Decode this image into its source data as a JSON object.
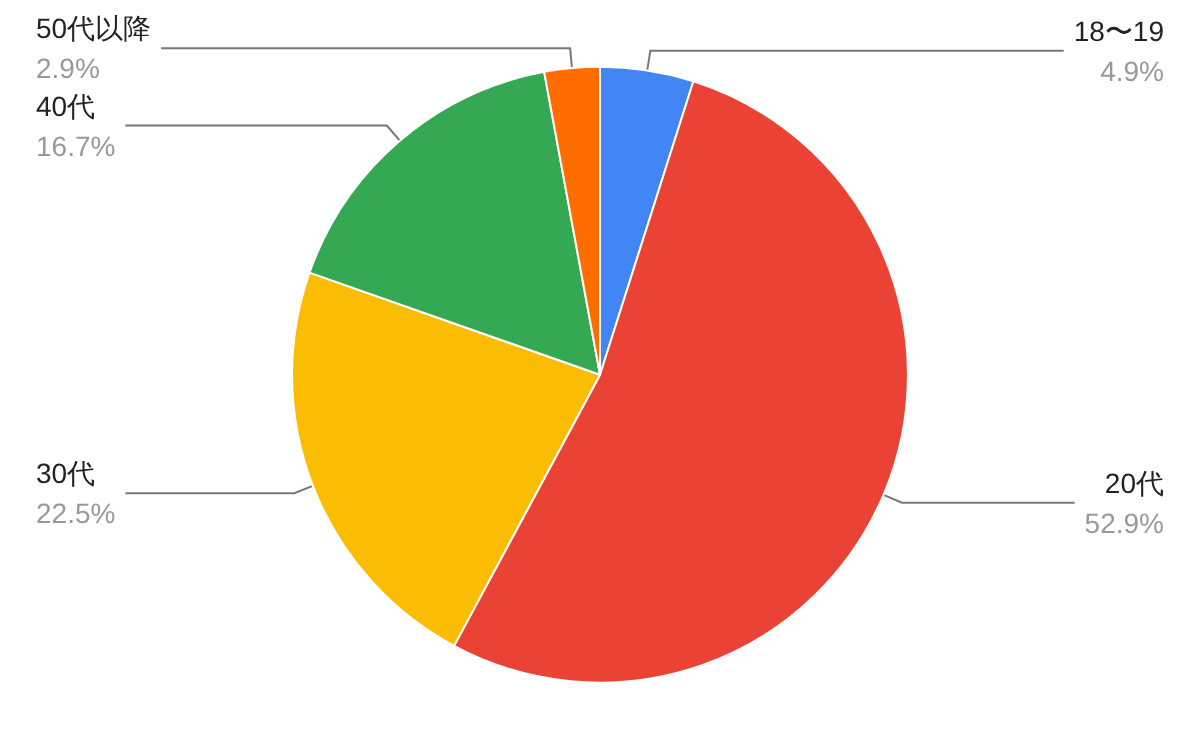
{
  "chart_data": {
    "type": "pie",
    "categories": [
      "18〜19",
      "20代",
      "30代",
      "40代",
      "50代以降"
    ],
    "values": [
      4.9,
      52.9,
      22.5,
      16.7,
      2.9
    ],
    "value_labels": [
      "4.9%",
      "52.9%",
      "22.5%",
      "16.7%",
      "2.9%"
    ],
    "colors": [
      "#4285f4",
      "#ea4335",
      "#fbbc04",
      "#34a853",
      "#ff6d01"
    ],
    "legend": false
  }
}
